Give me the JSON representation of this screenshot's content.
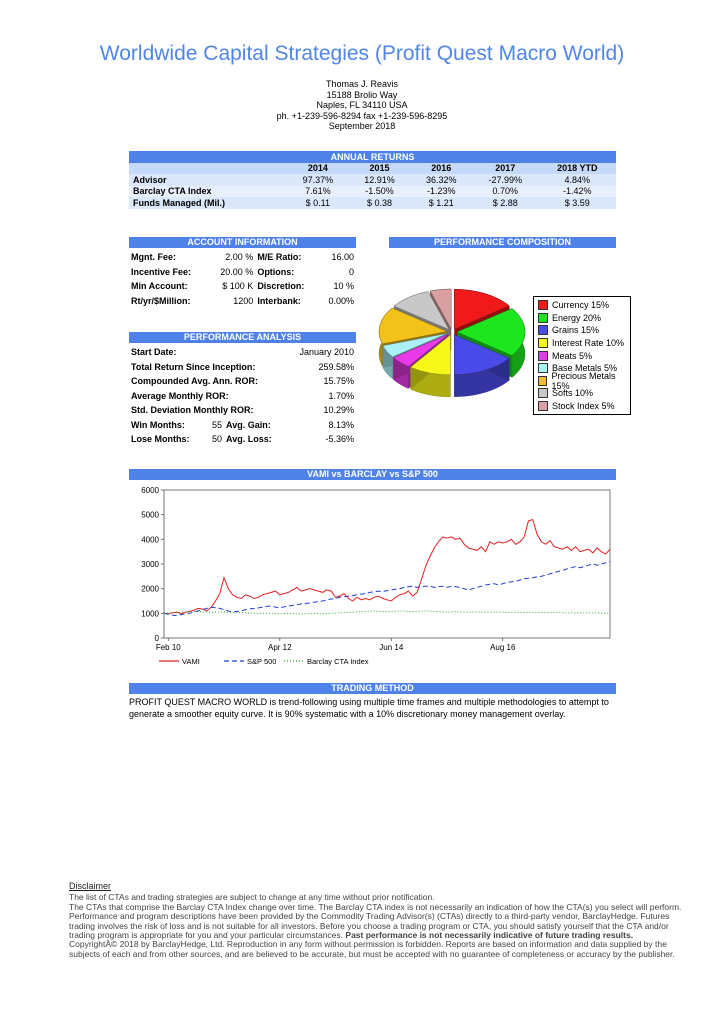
{
  "header": {
    "title": "Worldwide Capital Strategies (Profit Quest Macro World)",
    "address_lines": [
      "Thomas J. Reavis",
      "15188 Brolio Way",
      "Naples, FL 34110 USA",
      "ph. +1-239-596-8294 fax +1-239-596-8295",
      "September 2018"
    ]
  },
  "annual_returns": {
    "title": "ANNUAL RETURNS",
    "columns": [
      "2014",
      "2015",
      "2016",
      "2017",
      "2018 YTD"
    ],
    "rows": [
      {
        "label": "Advisor",
        "values": [
          "97.37%",
          "12.91%",
          "36.32%",
          "-27.99%",
          "4.84%"
        ]
      },
      {
        "label": "Barclay CTA Index",
        "values": [
          "7.61%",
          "-1.50%",
          "-1.23%",
          "0.70%",
          "-1.42%"
        ]
      },
      {
        "label": "Funds Managed (Mil.)",
        "values": [
          "$ 0.11",
          "$ 0.38",
          "$ 1.21",
          "$ 2.88",
          "$ 3.59"
        ]
      }
    ]
  },
  "account_info": {
    "title": "ACCOUNT INFORMATION",
    "rows": [
      {
        "l1": "Mgnt. Fee:",
        "v1": "2.00 %",
        "l2": "M/E Ratio:",
        "v2": "16.00"
      },
      {
        "l1": "Incentive Fee:",
        "v1": "20.00 %",
        "l2": "Options:",
        "v2": "0"
      },
      {
        "l1": "Min Account:",
        "v1": "$ 100 K",
        "l2": "Discretion:",
        "v2": "10 %"
      },
      {
        "l1": "Rt/yr/$Million:",
        "v1": "1200",
        "l2": "Interbank:",
        "v2": "0.00%"
      }
    ]
  },
  "performance_analysis": {
    "title": "PERFORMANCE ANALYSIS",
    "rows": [
      {
        "label": "Start Date:",
        "value": "January 2010"
      },
      {
        "label": "Total Return Since Inception:",
        "value": "259.58%"
      },
      {
        "label": "Compounded Avg. Ann. ROR:",
        "value": "15.75%"
      },
      {
        "label": "Average Monthly ROR:",
        "value": "1.70%"
      },
      {
        "label": "Std. Deviation Monthly ROR:",
        "value": "10.29%"
      }
    ],
    "win_row": {
      "l1": "Win Months:",
      "v1": "55",
      "l2": "Avg. Gain:",
      "v2": "8.13%"
    },
    "lose_row": {
      "l1": "Lose Months:",
      "v1": "50",
      "l2": "Avg. Loss:",
      "v2": "-5.36%"
    }
  },
  "trading_method": {
    "title": "TRADING METHOD",
    "text": "PROFIT QUEST MACRO WORLD is trend-following using multiple time frames and multiple methodologies to attempt to generate a smoother equity curve. It is 90% systematic with a 10% discretionary money management overlay."
  },
  "disclaimer": {
    "heading": "Disclaimer",
    "p1": "The list of CTAs and trading strategies are subject to change at any time without prior notification.",
    "p2": "The CTAs that comprise the Barclay CTA Index change over time.  The Barclay CTA index is not necessarily an indication of how the CTA(s) you select will perform.",
    "p3": "Performance and program descriptions have been provided by the Commodity Trading Advisor(s) (CTAs) directly to a third-party vendor, BarclayHedge. Futures trading involves the risk of loss and is not suitable for all investors.  Before you choose a trading program or CTA, you should satisfy yourself that the CTA and/or trading program is appropriate for you and your particular circumstances.",
    "p3_bold": "Past performance is not necessarily indicative of future trading results.",
    "p4": "CopyrightÂ© 2018 by BarclayHedge, Ltd. Reproduction in any form without permission is forbidden. Reports are based on information and data supplied by the subjects of each and from other sources, and are believed to be accurate, but must be accepted with no guarantee of completeness or accuracy by the publisher."
  },
  "chart_data": [
    {
      "type": "pie",
      "title": "PERFORMANCE COMPOSITION",
      "categories": [
        "Currency 15%",
        "Energy 20%",
        "Grains 15%",
        "Interest Rate 10%",
        "Meats 5%",
        "Base Metals 5%",
        "Precious Metals 15%",
        "Softs 10%",
        "Stock Index 5%"
      ],
      "values": [
        15,
        20,
        15,
        10,
        5,
        5,
        15,
        10,
        5
      ],
      "colors": [
        "#f01a1a",
        "#1ee61e",
        "#4a4ae8",
        "#f7f71a",
        "#e83ae8",
        "#aaf0f7",
        "#f2c21a",
        "#c8c8c8",
        "#d8a0a0"
      ],
      "legend_position": "right"
    },
    {
      "type": "line",
      "title": "VAMI vs BARCLAY vs S&P 500",
      "ylim": [
        0,
        6000
      ],
      "yticks": [
        "0",
        "1000",
        "2000",
        "3000",
        "4000",
        "5000",
        "6000"
      ],
      "xticks": [
        "Feb 10",
        "Apr 12",
        "Jun 14",
        "Aug 16"
      ],
      "xtick_month_index": [
        1,
        27,
        53,
        79
      ],
      "n_months": 105,
      "grid": false,
      "legend_position": "bottom",
      "series": [
        {
          "name": "VAMI",
          "color": "#e02020",
          "dash": "solid",
          "values": [
            1000,
            980,
            1020,
            1050,
            990,
            1040,
            1080,
            1130,
            1200,
            1170,
            1100,
            1250,
            1500,
            1800,
            2450,
            2000,
            1750,
            1650,
            1600,
            1750,
            1700,
            1600,
            1650,
            1750,
            1800,
            1850,
            1900,
            1750,
            1800,
            1850,
            1950,
            2050,
            1900,
            1950,
            2000,
            1950,
            1900,
            1850,
            1950,
            1900,
            1650,
            1700,
            1800,
            1600,
            1500,
            1650,
            1550,
            1600,
            1550,
            1650,
            1700,
            1600,
            1550,
            1500,
            1650,
            1750,
            1800,
            1900,
            1700,
            1850,
            2350,
            2900,
            3300,
            3650,
            3900,
            4100,
            4050,
            4100,
            4000,
            4050,
            3800,
            3650,
            3600,
            3550,
            3700,
            3500,
            3900,
            3800,
            3900,
            3850,
            3900,
            4000,
            3800,
            3900,
            4100,
            4750,
            4800,
            4200,
            3900,
            3800,
            3950,
            3700,
            3650,
            3600,
            3700,
            3550,
            3700,
            3500,
            3550,
            3600,
            3450,
            3650,
            3500,
            3400,
            3600
          ]
        },
        {
          "name": "S&P 500",
          "color": "#1e3ed0",
          "dash": "dashed",
          "values": [
            1000,
            960,
            930,
            900,
            950,
            980,
            1000,
            1050,
            1100,
            1150,
            1200,
            1250,
            1230,
            1200,
            1150,
            1100,
            1050,
            1080,
            1100,
            1150,
            1180,
            1200,
            1220,
            1250,
            1280,
            1300,
            1250,
            1230,
            1260,
            1300,
            1320,
            1350,
            1380,
            1400,
            1420,
            1450,
            1480,
            1500,
            1550,
            1580,
            1600,
            1650,
            1680,
            1700,
            1720,
            1750,
            1780,
            1800,
            1850,
            1870,
            1900,
            1880,
            1920,
            1950,
            1980,
            2000,
            2050,
            2080,
            2100,
            2050,
            2080,
            2100,
            2100,
            2050,
            2080,
            2100,
            2050,
            2100,
            2080,
            2050,
            2000,
            1950,
            2000,
            2050,
            2100,
            2150,
            2180,
            2200,
            2150,
            2200,
            2250,
            2280,
            2300,
            2350,
            2400,
            2420,
            2450,
            2480,
            2500,
            2550,
            2600,
            2650,
            2700,
            2750,
            2800,
            2850,
            2900,
            2850,
            2900,
            2950,
            3000,
            2950,
            3000,
            3050,
            3100
          ]
        },
        {
          "name": "Barclay CTA Index",
          "color": "#2aa02a",
          "dash": "dotted",
          "values": [
            1000,
            1010,
            1020,
            1030,
            1040,
            1060,
            1070,
            1080,
            1070,
            1060,
            1050,
            1040,
            1050,
            1060,
            1050,
            1040,
            1030,
            1020,
            1030,
            1020,
            1010,
            1000,
            990,
            1000,
            1010,
            1000,
            990,
            980,
            990,
            1000,
            990,
            980,
            970,
            980,
            990,
            1000,
            990,
            980,
            990,
            1000,
            1010,
            1020,
            1030,
            1040,
            1050,
            1060,
            1070,
            1080,
            1090,
            1100,
            1090,
            1080,
            1070,
            1080,
            1090,
            1100,
            1090,
            1080,
            1070,
            1080,
            1090,
            1100,
            1090,
            1080,
            1070,
            1060,
            1050,
            1060,
            1070,
            1060,
            1050,
            1040,
            1050,
            1060,
            1050,
            1040,
            1050,
            1040,
            1050,
            1040,
            1030,
            1040,
            1030,
            1040,
            1030,
            1040,
            1030,
            1020,
            1030,
            1020,
            1030,
            1020,
            1030,
            1020,
            1010,
            1020,
            1010,
            1020,
            1010,
            1020,
            1010,
            1020,
            1010,
            1000,
            1010
          ]
        }
      ]
    }
  ]
}
